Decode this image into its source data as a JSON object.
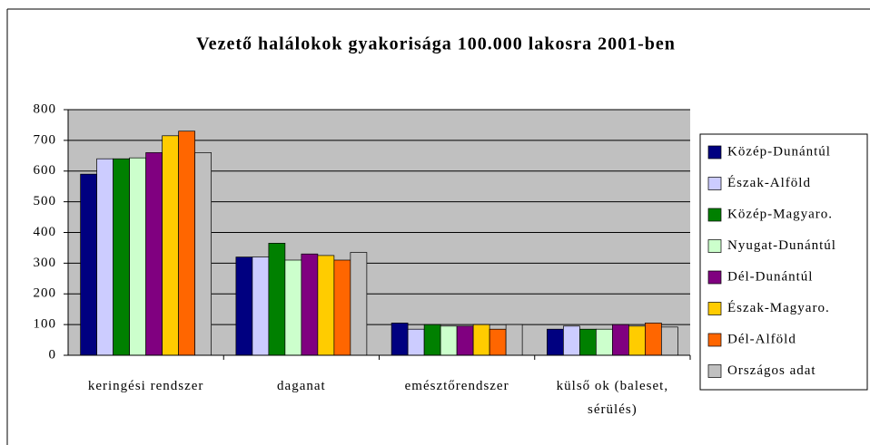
{
  "chart_data": {
    "type": "bar",
    "title": "Vezető halálokok gyakorisága 100.000 lakosra 2001-ben",
    "categories": [
      "keringési rendszer",
      "daganat",
      "emésztőrendszer",
      "külső ok (baleset, sérülés)"
    ],
    "series": [
      {
        "name": "Közép-Dunántúl",
        "color": "#000080",
        "values": [
          590,
          320,
          105,
          85
        ]
      },
      {
        "name": "Észak-Alföld",
        "color": "#ccccff",
        "values": [
          640,
          320,
          85,
          95
        ]
      },
      {
        "name": "Közép-Magyaro.",
        "color": "#008000",
        "values": [
          640,
          365,
          100,
          85
        ]
      },
      {
        "name": "Nyugat-Dunántúl",
        "color": "#ccffcc",
        "values": [
          643,
          310,
          95,
          85
        ]
      },
      {
        "name": "Dél-Dunántúl",
        "color": "#800080",
        "values": [
          660,
          330,
          95,
          100
        ]
      },
      {
        "name": "Észak-Magyaro.",
        "color": "#ffcc00",
        "values": [
          715,
          325,
          100,
          95
        ]
      },
      {
        "name": "Dél-Alföld",
        "color": "#ff6600",
        "values": [
          730,
          310,
          85,
          105
        ]
      },
      {
        "name": "Országos adat",
        "color": "#c0c0c0",
        "values": [
          660,
          335,
          100,
          92
        ]
      }
    ],
    "ylim": [
      0,
      800
    ],
    "yticks": [
      0,
      100,
      200,
      300,
      400,
      500,
      600,
      700,
      800
    ],
    "grid": true,
    "plot_background": "#c0c0c0",
    "legend": "right"
  }
}
